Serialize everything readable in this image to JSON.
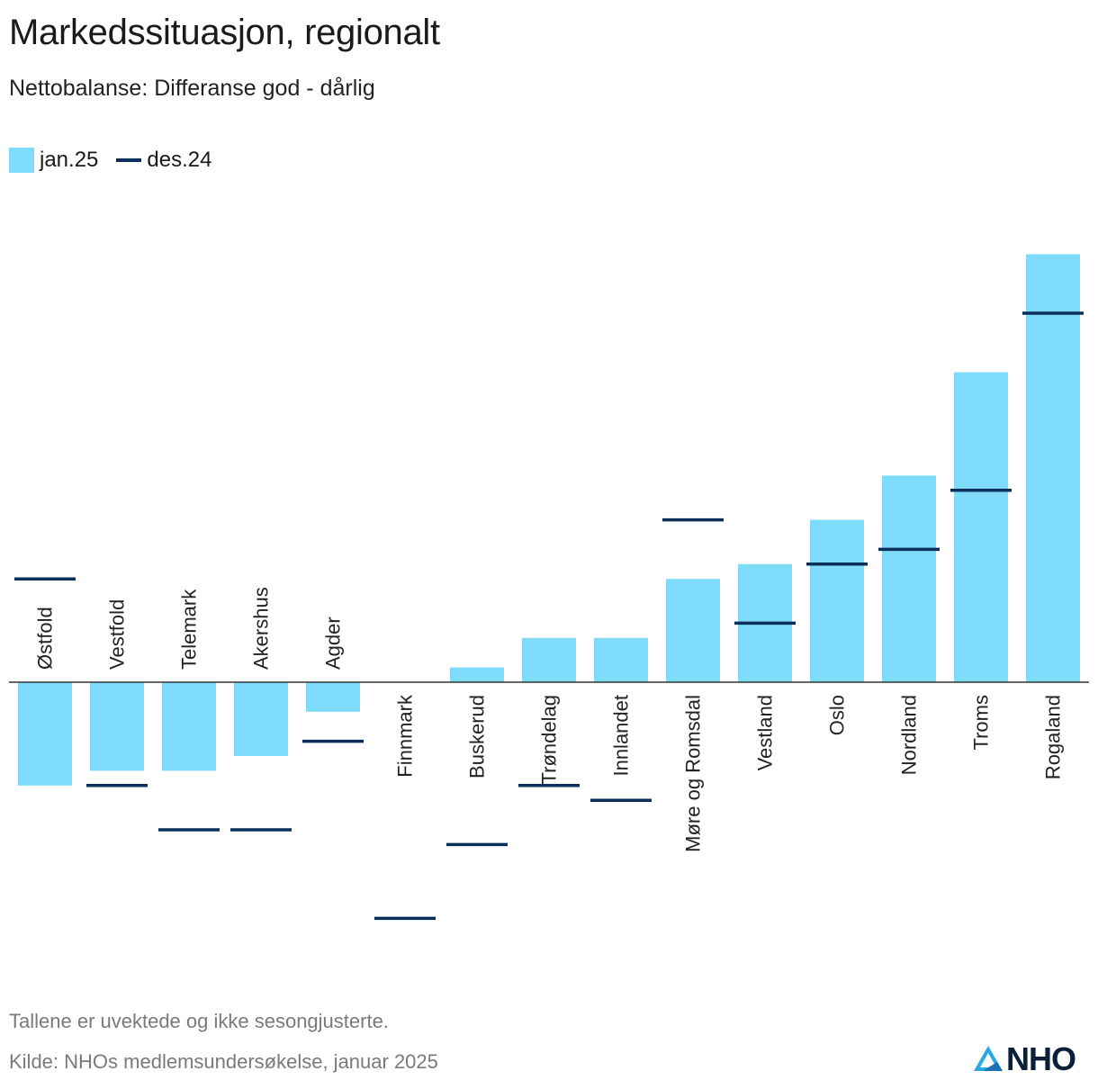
{
  "title": "Markedssituasjon, regionalt",
  "subtitle": "Nettobalanse: Differanse god - dårlig",
  "legend": {
    "bar_label": "jan.25",
    "line_label": "des.24"
  },
  "colors": {
    "bar": "#7fdbfa",
    "marker": "#0b2f5b",
    "axis": "#333333"
  },
  "footer": {
    "note": "Tallene er uvektede og ikke sesongjusterte.",
    "source": "Kilde: NHOs medlemsundersøkelse, januar 2025",
    "logo_text": "NHO",
    "logo_icon": "nho-logo-icon"
  },
  "chart_data": {
    "type": "bar",
    "categories": [
      "Østfold",
      "Vestfold",
      "Telemark",
      "Akershus",
      "Agder",
      "Finnmark",
      "Buskerud",
      "Trøndelag",
      "Innlandet",
      "Møre og Romsdal",
      "Vestland",
      "Oslo",
      "Nordland",
      "Troms",
      "Rogaland"
    ],
    "series": [
      {
        "name": "jan.25",
        "kind": "bar",
        "values": [
          -7,
          -6,
          -6,
          -5,
          -2,
          0,
          1,
          3,
          3,
          7,
          8,
          11,
          14,
          21,
          29
        ]
      },
      {
        "name": "des.24",
        "kind": "marker",
        "values": [
          7,
          -7,
          -10,
          -10,
          -4,
          -16,
          -11,
          -7,
          -8,
          11,
          4,
          8,
          9,
          13,
          25
        ]
      }
    ],
    "ylim": [
      -18,
      30
    ],
    "grid": false,
    "legend_position": "top-left"
  }
}
